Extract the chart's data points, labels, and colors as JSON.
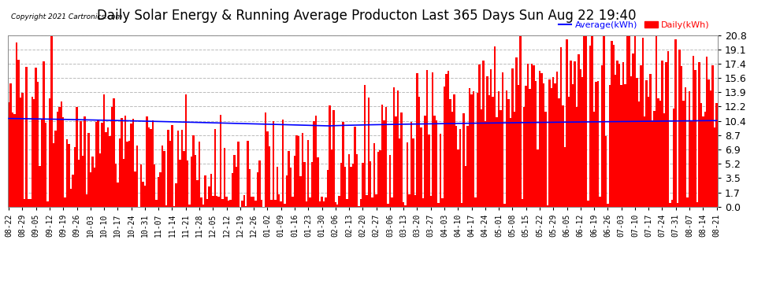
{
  "title": "Daily Solar Energy & Running Average Producton Last 365 Days Sun Aug 22 19:40",
  "copyright": "Copyright 2021 Cartronics.com",
  "legend_avg": "Average(kWh)",
  "legend_daily": "Daily(kWh)",
  "yticks": [
    0.0,
    1.7,
    3.5,
    5.2,
    6.9,
    8.7,
    10.4,
    12.2,
    13.9,
    15.6,
    17.4,
    19.1,
    20.8
  ],
  "ymax": 20.8,
  "ymin": 0.0,
  "bar_color": "#ff0000",
  "avg_line_color": "#0000ff",
  "title_color": "#000000",
  "copyright_color": "#000000",
  "legend_avg_color": "#0000ff",
  "legend_daily_color": "#ff0000",
  "background_color": "#ffffff",
  "grid_color": "#bbbbbb",
  "title_fontsize": 12,
  "tick_fontsize": 7,
  "bar_width": 1.0,
  "num_bars": 365
}
